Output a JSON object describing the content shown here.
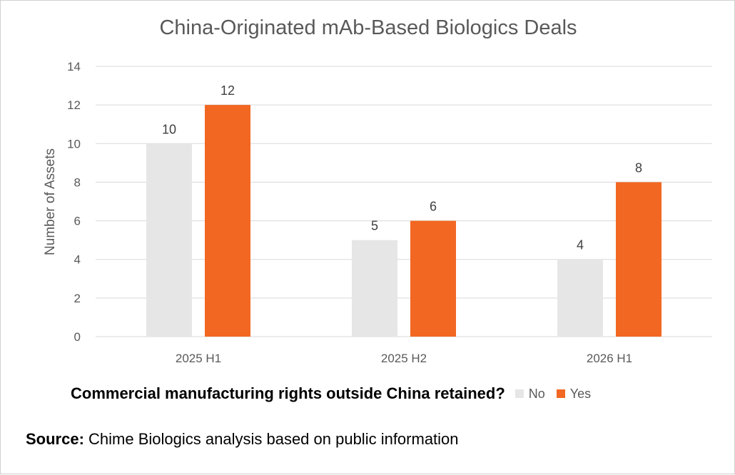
{
  "chart_data": {
    "type": "bar",
    "title": "China-Originated mAb-Based Biologics Deals",
    "categories": [
      "2025 H1",
      "2025 H2",
      "2026 H1"
    ],
    "series": [
      {
        "name": "No",
        "values": [
          10,
          5,
          4
        ],
        "color": "#e7e6e6"
      },
      {
        "name": "Yes",
        "values": [
          12,
          6,
          8
        ],
        "color": "#f26722"
      }
    ],
    "xlabel": "",
    "ylabel": "Number of Assets",
    "ylim": [
      0,
      14
    ],
    "yticks": [
      0,
      2,
      4,
      6,
      8,
      10,
      12,
      14
    ],
    "grid": true,
    "data_labels": true,
    "legend": {
      "title": "Commercial manufacturing rights outside China retained?",
      "placement": "bottom"
    }
  },
  "source": {
    "label": "Source:",
    "text": " Chime Biologics analysis based on public information"
  }
}
